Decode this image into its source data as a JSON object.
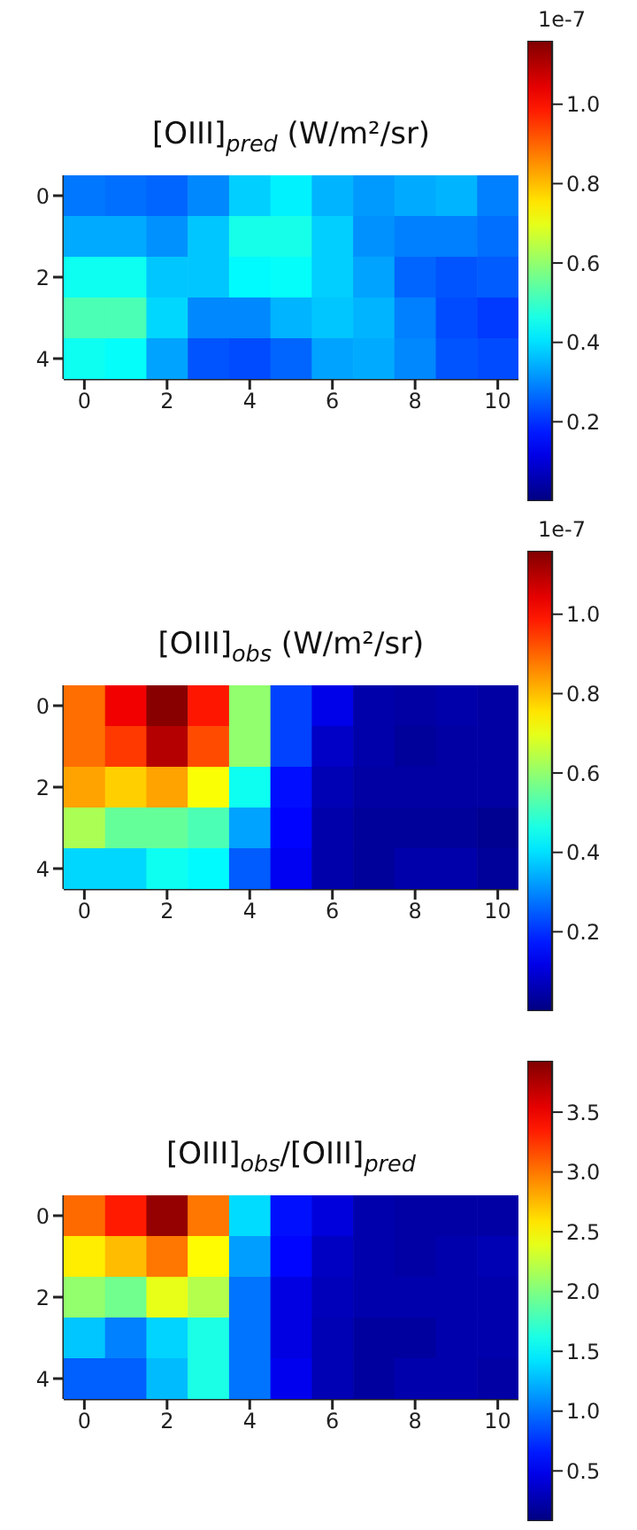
{
  "chart_data": [
    {
      "type": "heatmap",
      "title": "[OIII]$_{pred}$ (W/m²/sr)",
      "categories": [
        "0",
        null,
        "2",
        null,
        "4",
        null,
        "6",
        null,
        "8",
        null,
        "10"
      ],
      "y_categories": [
        "0",
        null,
        "2",
        null,
        "4"
      ],
      "cells": [
        [
          0.28,
          0.27,
          0.26,
          0.3,
          0.38,
          0.42,
          0.35,
          0.32,
          0.34,
          0.35,
          0.29
        ],
        [
          0.34,
          0.34,
          0.31,
          0.37,
          0.46,
          0.46,
          0.38,
          0.31,
          0.29,
          0.29,
          0.27
        ],
        [
          0.45,
          0.45,
          0.37,
          0.37,
          0.43,
          0.44,
          0.38,
          0.33,
          0.26,
          0.24,
          0.25
        ],
        [
          0.52,
          0.52,
          0.39,
          0.3,
          0.3,
          0.35,
          0.37,
          0.35,
          0.29,
          0.23,
          0.21
        ],
        [
          0.45,
          0.44,
          0.33,
          0.24,
          0.23,
          0.26,
          0.33,
          0.34,
          0.3,
          0.24,
          0.23
        ]
      ],
      "clim": [
        0.0,
        1.16
      ],
      "cticks": [
        0.2,
        0.4,
        0.6,
        0.8,
        {
          "value": 1,
          "label": "1.0"
        }
      ],
      "annotations": [
        "1e-7"
      ]
    },
    {
      "type": "heatmap",
      "title": "[OIII]$_{obs}$ (W/m²/sr)",
      "categories": [
        "0",
        null,
        "2",
        null,
        "4",
        null,
        "6",
        null,
        "8",
        null,
        "10"
      ],
      "y_categories": [
        "0",
        null,
        "2",
        null,
        "4"
      ],
      "cells": [
        [
          0.89,
          1.03,
          1.15,
          0.99,
          0.6,
          0.22,
          0.12,
          0.05,
          0.04,
          0.05,
          0.04
        ],
        [
          0.89,
          0.95,
          1.1,
          0.93,
          0.6,
          0.22,
          0.08,
          0.05,
          0.03,
          0.04,
          0.04
        ],
        [
          0.83,
          0.78,
          0.83,
          0.72,
          0.45,
          0.16,
          0.06,
          0.04,
          0.04,
          0.04,
          0.04
        ],
        [
          0.63,
          0.55,
          0.55,
          0.52,
          0.33,
          0.15,
          0.05,
          0.03,
          0.03,
          0.03,
          0.02
        ],
        [
          0.39,
          0.39,
          0.45,
          0.43,
          0.25,
          0.13,
          0.05,
          0.03,
          0.05,
          0.05,
          0.03
        ]
      ],
      "clim": [
        0.0,
        1.16
      ],
      "cticks": [
        0.2,
        0.4,
        0.6,
        0.8,
        {
          "value": 1,
          "label": "1.0"
        }
      ],
      "annotations": [
        "1e-7"
      ]
    },
    {
      "type": "heatmap",
      "title": "[OIII]$_{obs}$/[OIII]$_{pred}$",
      "categories": [
        "0",
        null,
        "2",
        null,
        "4",
        null,
        "6",
        null,
        "8",
        null,
        "10"
      ],
      "y_categories": [
        "0",
        null,
        "2",
        null,
        "4"
      ],
      "cells": [
        [
          3.05,
          3.35,
          3.85,
          3.0,
          1.39,
          0.62,
          0.43,
          0.25,
          0.22,
          0.22,
          0.22
        ],
        [
          2.55,
          2.74,
          3.0,
          2.5,
          1.16,
          0.58,
          0.33,
          0.25,
          0.22,
          0.25,
          0.28
        ],
        [
          2.08,
          1.95,
          2.4,
          2.2,
          1.0,
          0.45,
          0.3,
          0.25,
          0.25,
          0.25,
          0.25
        ],
        [
          1.31,
          1.05,
          1.36,
          1.62,
          1.0,
          0.45,
          0.28,
          0.2,
          0.2,
          0.25,
          0.25
        ],
        [
          0.92,
          0.92,
          1.27,
          1.62,
          1.0,
          0.5,
          0.28,
          0.2,
          0.25,
          0.25,
          0.22
        ]
      ],
      "clim": [
        0.08,
        3.93
      ],
      "cticks": [
        0.5,
        {
          "value": 1,
          "label": "1.0"
        },
        1.5,
        {
          "value": 2,
          "label": "2.0"
        },
        2.5,
        {
          "value": 3,
          "label": "3.0"
        },
        3.5
      ]
    }
  ]
}
